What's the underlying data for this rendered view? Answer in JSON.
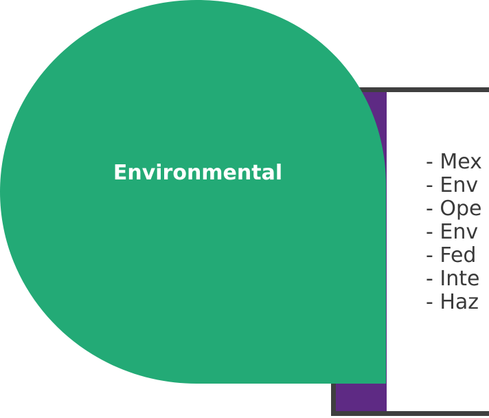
{
  "colors": {
    "teardrop": "#23aa76",
    "accent": "#5e2a84",
    "frame": "#3f3f3f",
    "text": "#3a3a3a"
  },
  "teardrop": {
    "title": "Environmental"
  },
  "card": {
    "items": [
      "- Mex",
      "- Env",
      "- Ope",
      "- Env",
      "- Fed",
      "- Inte",
      "- Haz"
    ]
  }
}
